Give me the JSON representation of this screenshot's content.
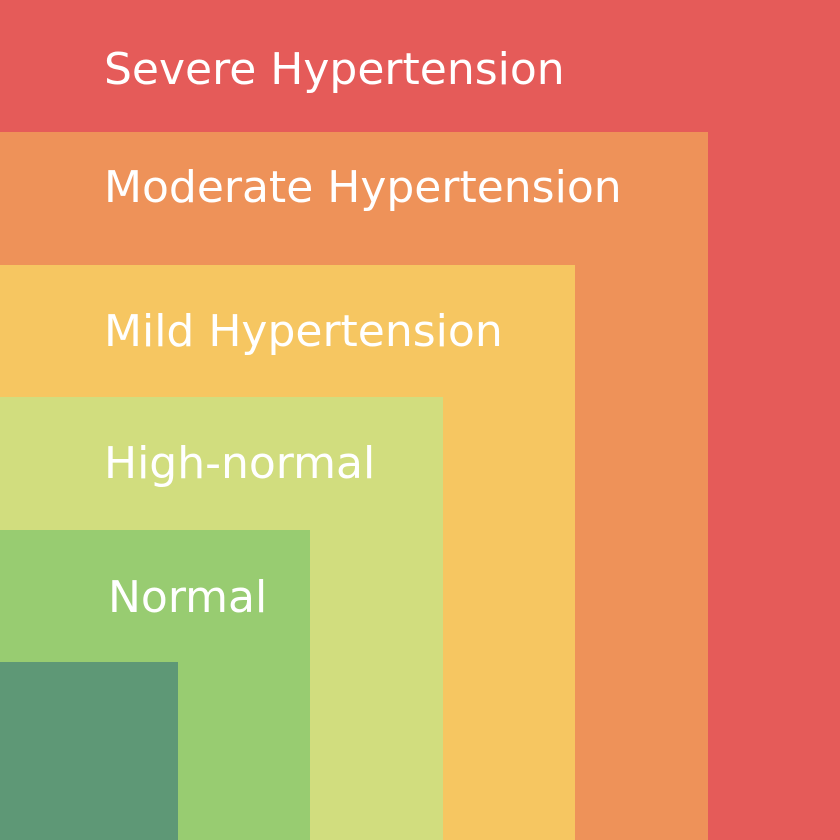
{
  "diagram": {
    "categories": [
      {
        "label": "Severe Hypertension",
        "color": "#E55B59"
      },
      {
        "label": "Moderate Hypertension",
        "color": "#EE9259"
      },
      {
        "label": "Mild Hypertension",
        "color": "#F6C661"
      },
      {
        "label": "High-normal",
        "color": "#D1DD7E"
      },
      {
        "label": "Normal",
        "color": "#98CC71"
      },
      {
        "label": "",
        "color": "#5E9876"
      }
    ]
  }
}
